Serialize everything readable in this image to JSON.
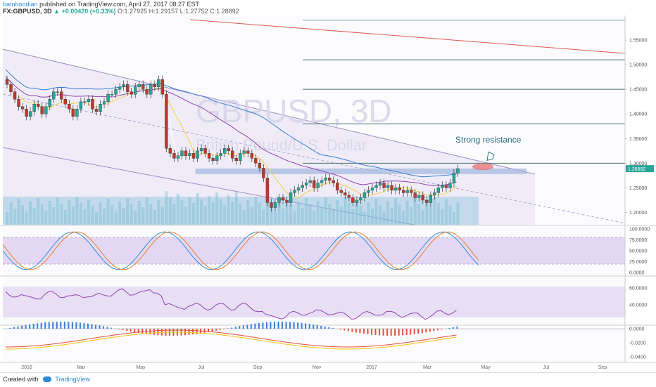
{
  "header": {
    "user": "bamboodian",
    "published": "published on TradingView.com, April 27, 2017 08:27 EST",
    "symbol": "FX:GBPUSD, 3D",
    "change": "+0.00420 (+0.33%)",
    "ohlc": "O:1.27925 H:1.29157 L:1.27752 C:1.28892"
  },
  "footer": {
    "created_with": "Created with",
    "brand": "TradingView"
  },
  "colors": {
    "up": "#26a69a",
    "down": "#c0392b",
    "band": "#e6e0f2",
    "stoch_k": "#2f8bd6",
    "stoch_d": "#e67e22",
    "rsi": "#8e44ad",
    "macd": "#e74c3c",
    "signal": "#f1c40f",
    "resistance": "#e57373",
    "label": "#2a6f7c"
  },
  "chart_data": {
    "type": "candlestick",
    "title": "GBPUSD, 3D",
    "watermark": "GBPUSD, 3D",
    "subtitle": "British Pound/U.S. Dollar",
    "last_price": "1.28892",
    "y_ticks": [
      "1.55000",
      "1.50000",
      "1.45000",
      "1.40000",
      "1.35000",
      "1.30000",
      "1.25000",
      "1.20000"
    ],
    "ylim": [
      1.175,
      1.6
    ],
    "x_ticks": [
      "2016",
      "Mar",
      "May",
      "Jul",
      "Sep",
      "Nov",
      "2017",
      "Mar",
      "May",
      "Jul",
      "Sep"
    ],
    "annotation": "Strong resistance",
    "resistance_level": 1.3,
    "fib_levels": [
      1.59,
      1.51,
      1.45,
      1.38,
      1.3
    ],
    "close_series": [
      1.46,
      1.445,
      1.43,
      1.415,
      1.41,
      1.395,
      1.405,
      1.42,
      1.415,
      1.4,
      1.415,
      1.43,
      1.445,
      1.445,
      1.43,
      1.42,
      1.41,
      1.395,
      1.41,
      1.425,
      1.425,
      1.43,
      1.41,
      1.405,
      1.42,
      1.425,
      1.44,
      1.44,
      1.45,
      1.455,
      1.46,
      1.445,
      1.44,
      1.455,
      1.46,
      1.45,
      1.44,
      1.46,
      1.455,
      1.47,
      1.44,
      1.33,
      1.32,
      1.31,
      1.315,
      1.325,
      1.315,
      1.32,
      1.31,
      1.325,
      1.33,
      1.32,
      1.31,
      1.305,
      1.315,
      1.32,
      1.33,
      1.325,
      1.31,
      1.305,
      1.32,
      1.325,
      1.32,
      1.31,
      1.3,
      1.29,
      1.27,
      1.22,
      1.21,
      1.22,
      1.23,
      1.225,
      1.22,
      1.24,
      1.245,
      1.25,
      1.255,
      1.26,
      1.265,
      1.25,
      1.26,
      1.265,
      1.27,
      1.265,
      1.26,
      1.245,
      1.24,
      1.235,
      1.23,
      1.22,
      1.225,
      1.23,
      1.24,
      1.245,
      1.25,
      1.255,
      1.26,
      1.25,
      1.255,
      1.245,
      1.25,
      1.245,
      1.24,
      1.245,
      1.24,
      1.23,
      1.235,
      1.225,
      1.22,
      1.235,
      1.24,
      1.25,
      1.255,
      1.25,
      1.26,
      1.28,
      1.289
    ],
    "indicators": {
      "stoch_ticks": [
        "100.0000",
        "75.0000",
        "50.0000",
        "25.0000",
        "0.0000"
      ],
      "rsi_ticks": [
        "60.0000",
        "40.0000"
      ],
      "macd_ticks": [
        "0.0000",
        "-0.0200",
        "-0.0400"
      ]
    }
  }
}
